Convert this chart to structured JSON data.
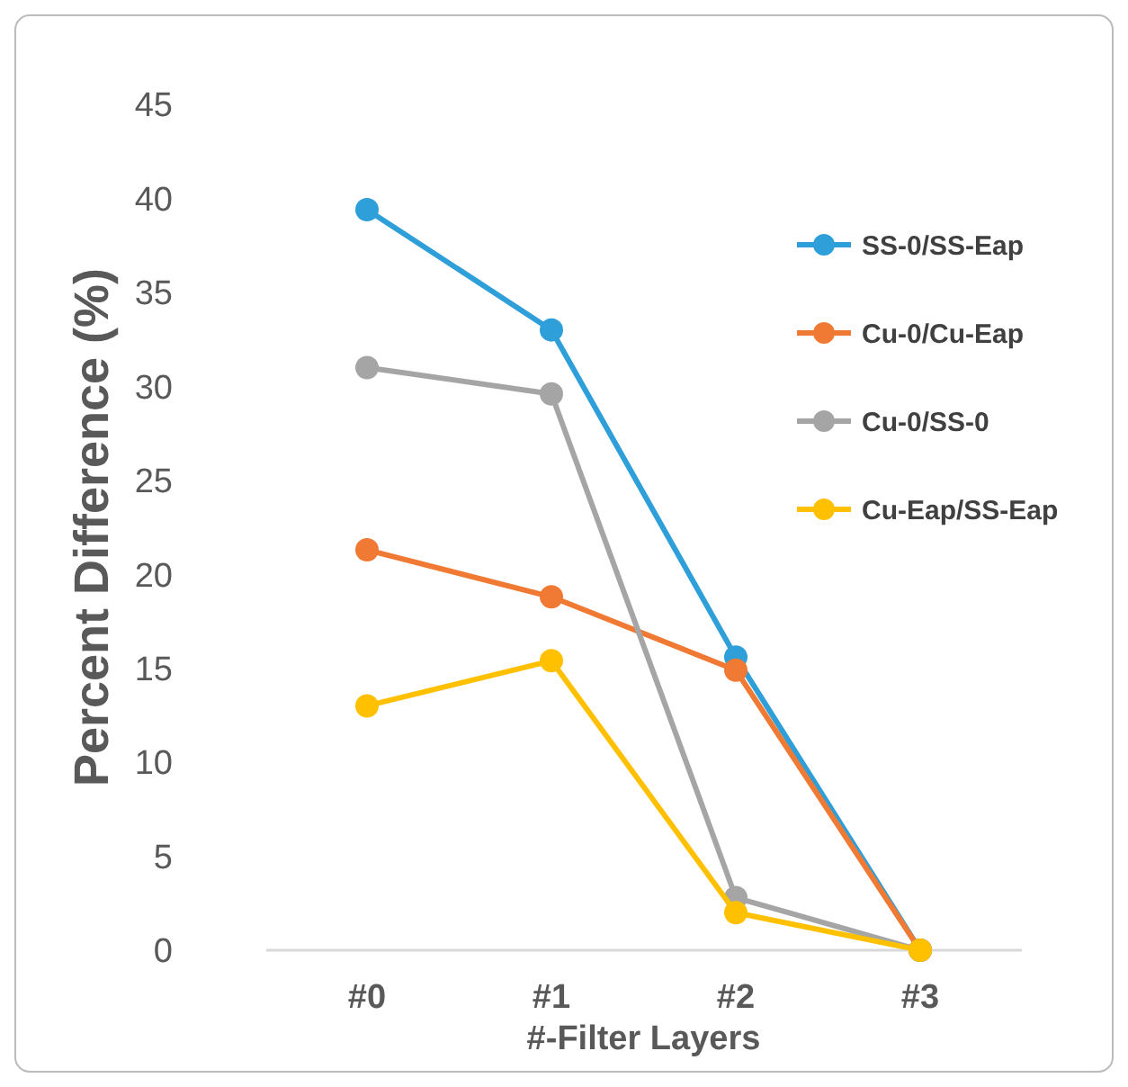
{
  "chart_data": {
    "type": "line",
    "xlabel": "#-Filter Layers",
    "ylabel": "Percent Difference (%)",
    "categories": [
      "#0",
      "#1",
      "#2",
      "#3"
    ],
    "ylim": [
      0,
      45
    ],
    "yticks": [
      0,
      5,
      10,
      15,
      20,
      25,
      30,
      35,
      40,
      45
    ],
    "grid": false,
    "legend": "top right",
    "marker": "circle",
    "line_style": "solid",
    "series": [
      {
        "name": "SS-0/SS-Eap",
        "color": "#2e9fd8",
        "values": [
          39.4,
          33.0,
          15.6,
          0
        ]
      },
      {
        "name": "Cu-0/Cu-Eap",
        "color": "#f07a34",
        "values": [
          21.3,
          18.8,
          14.9,
          0
        ]
      },
      {
        "name": "Cu-0/SS-0",
        "color": "#a5a5a5",
        "values": [
          31.0,
          29.6,
          2.8,
          0
        ]
      },
      {
        "name": "Cu-Eap/SS-Eap",
        "color": "#ffc000",
        "values": [
          13.0,
          15.4,
          2.0,
          0
        ]
      }
    ]
  }
}
